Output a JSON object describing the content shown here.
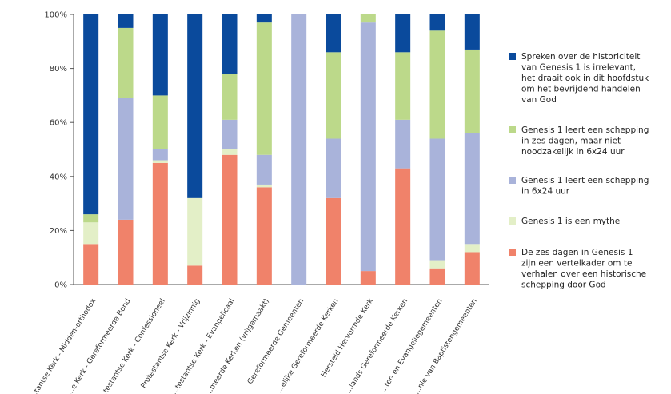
{
  "chart_data": {
    "type": "bar",
    "stacked": true,
    "title": "",
    "xlabel": "",
    "ylabel": "",
    "ylim": [
      0,
      100
    ],
    "y_ticks": [
      "0%",
      "20%",
      "40%",
      "60%",
      "80%",
      "100%"
    ],
    "grid": false,
    "legend_position": "right",
    "categories": [
      "...tantse Kerk - Midden-orthodox",
      "...e Kerk - Gereformeerde Bond",
      "...testantse Kerk - Confessioneel",
      "Protestantse Kerk - Vrijzinnig",
      "...testantse Kerk - Evangelicaal",
      "...meerde Kerken (vrijgemaakt)",
      "Gereformeerde Gemeenten",
      "...elijke Gereformeerde Kerken",
      "Hersteld Hervormde Kerk",
      "...lands Gereformeerde Kerken",
      "...ter- en Evangeliegemeenten",
      "...nie van Baptistengemeenten"
    ],
    "series": [
      {
        "name": "De zes dagen in Genesis 1 zijn een vertelkader om te verhalen over een historische schepping door God",
        "color": "#f0826a",
        "values": [
          15,
          24,
          45,
          7,
          48,
          36,
          0,
          32,
          5,
          43,
          6,
          12
        ]
      },
      {
        "name": "Genesis 1 is een mythe",
        "color": "#e3efc7",
        "values": [
          8,
          0,
          1,
          25,
          2,
          1,
          0,
          0,
          0,
          0,
          3,
          3
        ]
      },
      {
        "name": "Genesis 1 leert een schepping in 6x24 uur",
        "color": "#a9b3da",
        "values": [
          0,
          45,
          4,
          0,
          11,
          11,
          100,
          22,
          92,
          18,
          45,
          41
        ]
      },
      {
        "name": "Genesis 1 leert een schepping in zes dagen, maar niet noodzakelijk in 6x24 uur",
        "color": "#bcd98a",
        "values": [
          3,
          26,
          20,
          0,
          17,
          49,
          0,
          32,
          3,
          25,
          40,
          31
        ]
      },
      {
        "name": "Spreken over de historiciteit van Genesis 1 is irrelevant, het draait ook in dit hoofdstuk om het bevrijdend handelen van God",
        "color": "#0a4a9c",
        "values": [
          74,
          5,
          30,
          68,
          22,
          3,
          0,
          14,
          0,
          14,
          6,
          13
        ]
      }
    ],
    "legend": [
      {
        "series_index": 4,
        "lines": [
          "Spreken over de historiciteit",
          "van Genesis 1 is irrelevant,",
          "het draait ook in dit hoofdstuk",
          "om het bevrijdend handelen",
          "van God"
        ]
      },
      {
        "series_index": 3,
        "lines": [
          "Genesis 1 leert een schepping",
          "in zes dagen, maar niet",
          "noodzakelijk in 6x24 uur"
        ]
      },
      {
        "series_index": 2,
        "lines": [
          "Genesis 1 leert een schepping",
          "in 6x24 uur"
        ]
      },
      {
        "series_index": 1,
        "lines": [
          "Genesis 1 is een mythe"
        ]
      },
      {
        "series_index": 0,
        "lines": [
          "De zes dagen in Genesis 1",
          "zijn een vertelkader om te",
          "verhalen over een historische",
          "schepping door God"
        ]
      }
    ]
  }
}
